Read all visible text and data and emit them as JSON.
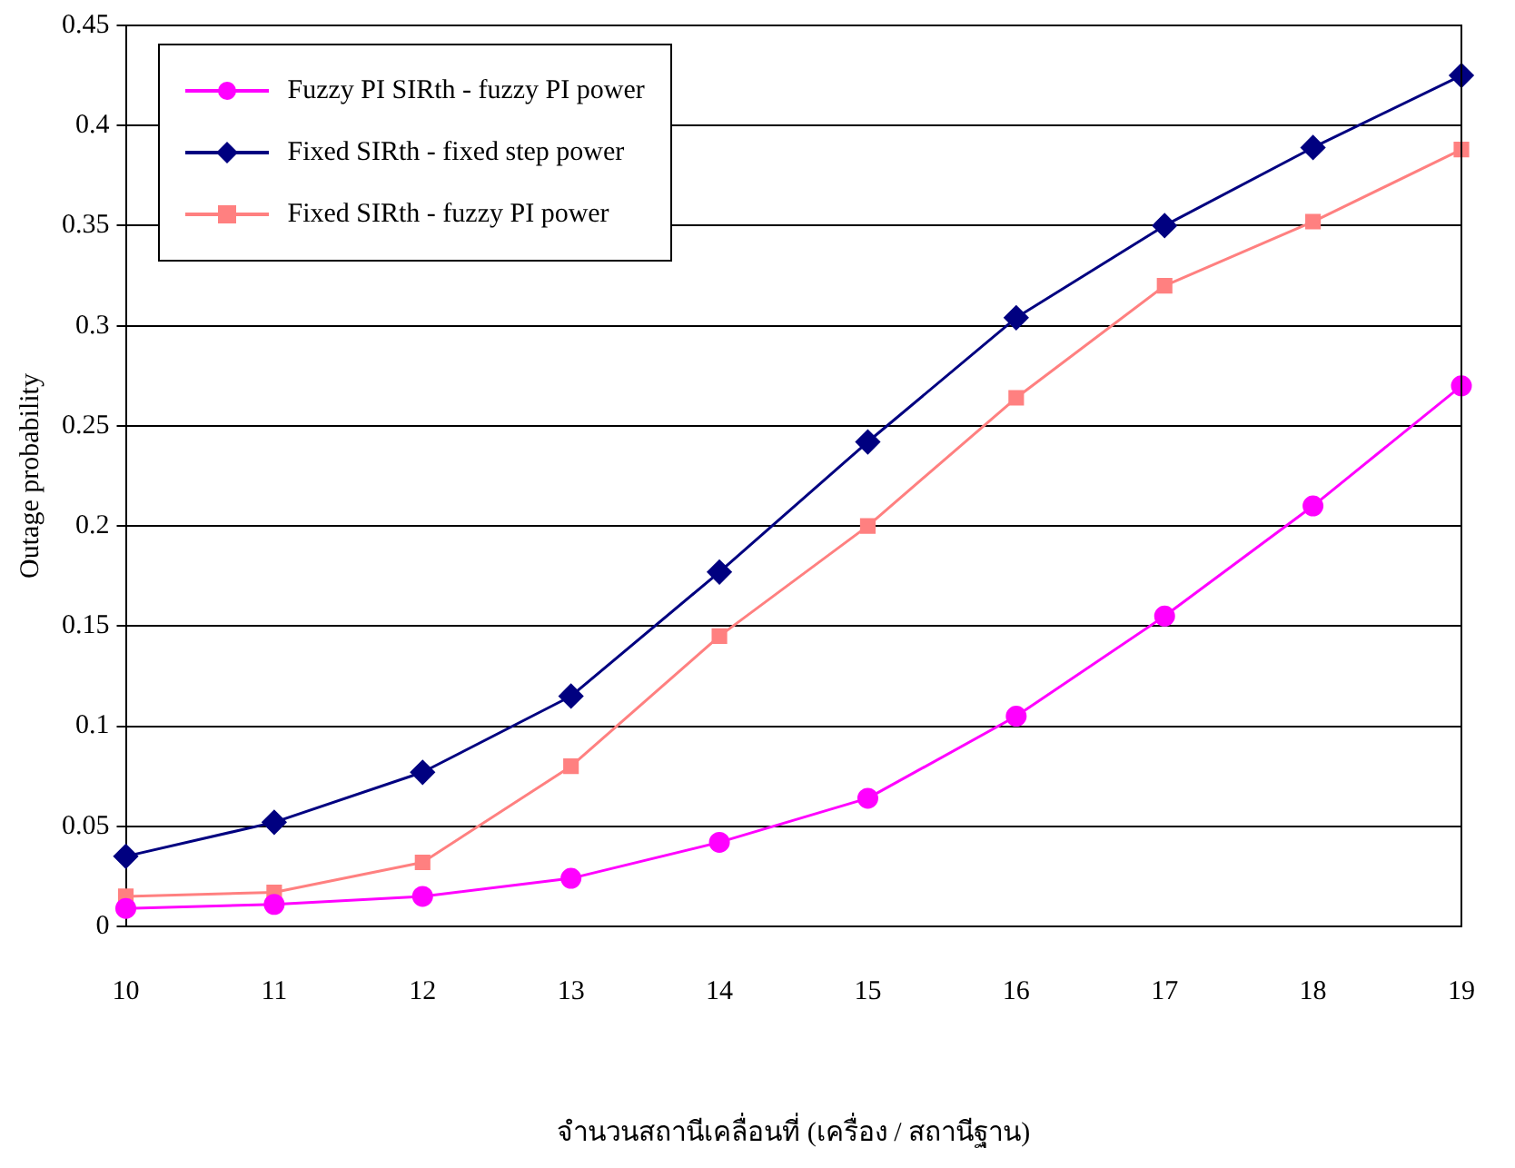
{
  "chart_data": {
    "type": "line",
    "xlabel": "จำนวนสถานีเคลื่อนที่ (เครื่อง / สถานีฐาน)",
    "ylabel": "Outage probability",
    "categories": [
      "10",
      "11",
      "12",
      "13",
      "14",
      "15",
      "16",
      "17",
      "18",
      "19"
    ],
    "ylim": [
      0,
      0.45
    ],
    "yticks": [
      0,
      0.05,
      0.1,
      0.15,
      0.2,
      0.25,
      0.3,
      0.35,
      0.4,
      0.45
    ],
    "grid": "y",
    "legend": "top left",
    "series": [
      {
        "name": "Fuzzy PI SIRth - fuzzy PI power",
        "color": "#ff00ff",
        "marker": "circle",
        "values": [
          0.009,
          0.011,
          0.015,
          0.024,
          0.042,
          0.064,
          0.105,
          0.155,
          0.21,
          0.27
        ]
      },
      {
        "name": "Fixed SIRth - fixed step power",
        "color": "#000080",
        "marker": "diamond",
        "values": [
          0.035,
          0.052,
          0.077,
          0.115,
          0.177,
          0.242,
          0.304,
          0.35,
          0.389,
          0.425
        ]
      },
      {
        "name": "Fixed SIRth - fuzzy PI power",
        "color": "#ff8080",
        "marker": "square",
        "values": [
          0.015,
          0.017,
          0.032,
          0.08,
          0.145,
          0.2,
          0.264,
          0.32,
          0.352,
          0.388
        ]
      }
    ]
  }
}
